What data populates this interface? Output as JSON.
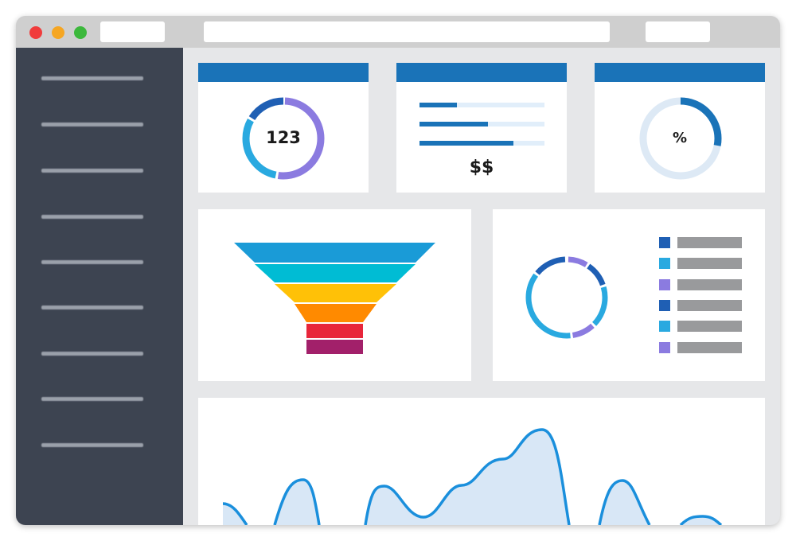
{
  "window": {
    "controls": [
      {
        "name": "close",
        "color": "#f03c3c"
      },
      {
        "name": "minimize",
        "color": "#f5a623"
      },
      {
        "name": "maximize",
        "color": "#3cb83c"
      }
    ]
  },
  "sidebar": {
    "items": 9
  },
  "colors": {
    "accent": "#1a73b8",
    "dark_blue": "#1f5fb4",
    "light_blue": "#29a9e0",
    "purple": "#8b7be0",
    "track": "#dde9f5"
  },
  "kpis": {
    "count_value": "123",
    "money_value": "$$",
    "percent_value": "%",
    "percent_fill": 0.28,
    "bar_fills": [
      0.3,
      0.55,
      0.75
    ]
  },
  "funnel": {
    "stage_colors": [
      "#1a9bd7",
      "#00bcd4",
      "#ffc107",
      "#ff8a00",
      "#e8253a",
      "#a2206a"
    ]
  },
  "legend": {
    "swatch_colors": [
      "#1f5fb4",
      "#29a9e0",
      "#8b7be0",
      "#1f5fb4",
      "#29a9e0",
      "#8b7be0"
    ]
  }
}
